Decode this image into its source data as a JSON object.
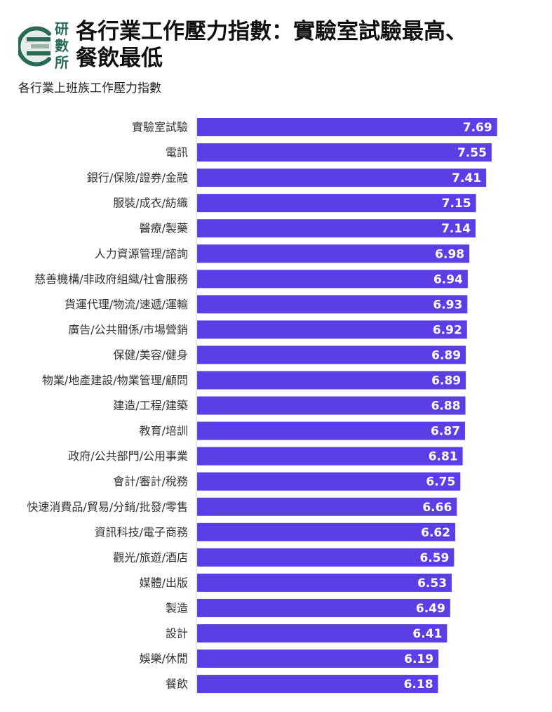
{
  "logo": {
    "text": [
      "研",
      "數",
      "所"
    ],
    "color": "#2b6a57",
    "accent_color": "#9fb5aa"
  },
  "chart_data": {
    "type": "bar",
    "orientation": "horizontal",
    "title": "各行業工作壓力指數：實驗室試驗最高、餐飲最低",
    "subtitle": "各行業上班族工作壓力指數",
    "xlabel": "",
    "ylabel": "",
    "categories": [
      "實驗室試驗",
      "電訊",
      "銀行/保險/證券/金融",
      "服裝/成衣/紡織",
      "醫療/製藥",
      "人力資源管理/諮詢",
      "慈善機構/非政府組織/社會服務",
      "貨運代理/物流/速遞/運輸",
      "廣告/公共關係/市場營銷",
      "保健/美容/健身",
      "物業/地產建設/物業管理/顧問",
      "建造/工程/建築",
      "教育/培訓",
      "政府/公共部門/公用事業",
      "會計/審計/稅務",
      "快速消費品/貿易/分銷/批發/零售",
      "資訊科技/電子商務",
      "觀光/旅遊/酒店",
      "媒體/出版",
      "製造",
      "設計",
      "娛樂/休閒",
      "餐飲"
    ],
    "values": [
      7.69,
      7.55,
      7.41,
      7.15,
      7.14,
      6.98,
      6.94,
      6.93,
      6.92,
      6.89,
      6.89,
      6.88,
      6.87,
      6.81,
      6.75,
      6.66,
      6.62,
      6.59,
      6.53,
      6.49,
      6.41,
      6.19,
      6.18
    ],
    "xlim": [
      0,
      8
    ],
    "grid": false,
    "legend": "none",
    "data_labels": "inside-end",
    "bar_color": "#5b3ee6",
    "axis_color": "#d0d0d0"
  }
}
